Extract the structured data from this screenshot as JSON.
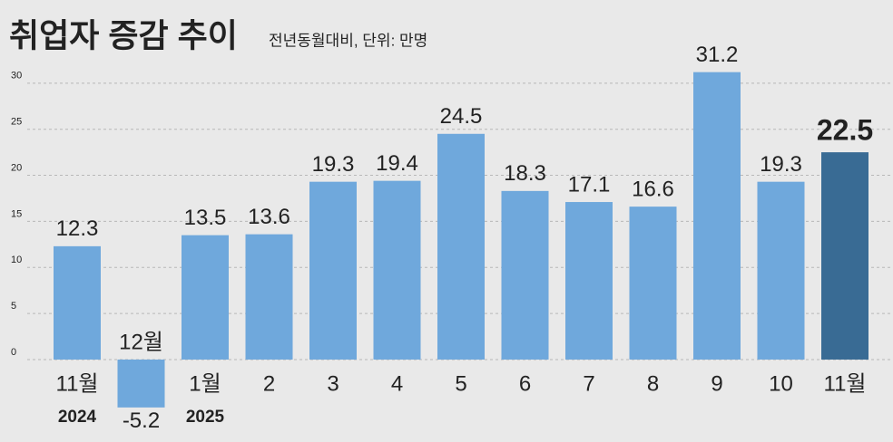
{
  "chart_data": {
    "type": "bar",
    "title": "취업자 증감 추이",
    "subtitle": "전년동월대비, 단위: 만명",
    "categories": [
      "11월",
      "12월",
      "1월",
      "2",
      "3",
      "4",
      "5",
      "6",
      "7",
      "8",
      "9",
      "10",
      "11월"
    ],
    "sublabels": [
      "2024",
      null,
      "2025",
      null,
      null,
      null,
      null,
      null,
      null,
      null,
      null,
      null,
      null
    ],
    "values": [
      12.3,
      -5.2,
      13.5,
      13.6,
      19.3,
      19.4,
      24.5,
      18.3,
      17.1,
      16.6,
      31.2,
      19.3,
      22.5
    ],
    "colors": [
      "#6fa8dc",
      "#6fa8dc",
      "#6fa8dc",
      "#6fa8dc",
      "#6fa8dc",
      "#6fa8dc",
      "#6fa8dc",
      "#6fa8dc",
      "#6fa8dc",
      "#6fa8dc",
      "#6fa8dc",
      "#6fa8dc",
      "#396b94"
    ],
    "ylim": [
      -6,
      32
    ],
    "yticks": [
      0,
      5,
      10,
      15,
      20,
      25,
      30
    ],
    "grid": true
  }
}
